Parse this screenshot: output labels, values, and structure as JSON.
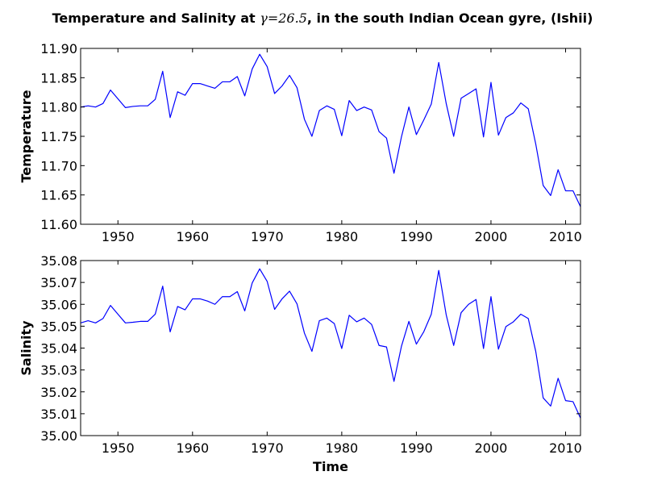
{
  "figure": {
    "title_prefix": "Temperature and Salinity at ",
    "title_gamma": "γ=26.5",
    "title_suffix": ", in the south Indian Ocean gyre, (Ishii)",
    "line_color": "#0000ff"
  },
  "chart_data": [
    {
      "type": "line",
      "ylabel": "Temperature",
      "xlabel": "",
      "xlim": [
        1945,
        2012
      ],
      "ylim": [
        11.6,
        11.9
      ],
      "xticks": [
        1950,
        1960,
        1970,
        1980,
        1990,
        2000,
        2010
      ],
      "yticks": [
        "11.60",
        "11.65",
        "11.70",
        "11.75",
        "11.80",
        "11.85",
        "11.90"
      ],
      "grid": false,
      "x": [
        1945,
        1946,
        1947,
        1948,
        1949,
        1950,
        1951,
        1952,
        1953,
        1954,
        1955,
        1956,
        1957,
        1958,
        1959,
        1960,
        1961,
        1962,
        1963,
        1964,
        1965,
        1966,
        1967,
        1968,
        1969,
        1970,
        1971,
        1972,
        1973,
        1974,
        1975,
        1976,
        1977,
        1978,
        1979,
        1980,
        1981,
        1982,
        1983,
        1984,
        1985,
        1986,
        1987,
        1988,
        1989,
        1990,
        1991,
        1992,
        1993,
        1994,
        1995,
        1996,
        1997,
        1998,
        1999,
        2000,
        2001,
        2002,
        2003,
        2004,
        2005,
        2006,
        2007,
        2008,
        2009,
        2010,
        2011,
        2012
      ],
      "values": [
        11.8,
        11.802,
        11.8,
        11.806,
        11.829,
        11.814,
        11.799,
        11.801,
        11.802,
        11.802,
        11.813,
        11.861,
        11.782,
        11.826,
        11.82,
        11.84,
        11.84,
        11.836,
        11.832,
        11.843,
        11.843,
        11.852,
        11.819,
        11.865,
        11.89,
        11.869,
        11.823,
        11.836,
        11.854,
        11.833,
        11.779,
        11.75,
        11.794,
        11.802,
        11.796,
        11.751,
        11.811,
        11.794,
        11.8,
        11.795,
        11.758,
        11.747,
        11.687,
        11.749,
        11.8,
        11.753,
        11.778,
        11.805,
        11.876,
        11.806,
        11.75,
        11.815,
        11.823,
        11.831,
        11.749,
        11.842,
        11.752,
        11.782,
        11.79,
        11.807,
        11.797,
        11.737,
        11.666,
        11.649,
        11.693,
        11.657,
        11.657,
        11.63
      ]
    },
    {
      "type": "line",
      "ylabel": "Salinity",
      "xlabel": "Time",
      "xlim": [
        1945,
        2012
      ],
      "ylim": [
        35.0,
        35.08
      ],
      "xticks": [
        1950,
        1960,
        1970,
        1980,
        1990,
        2000,
        2010
      ],
      "yticks": [
        "35.00",
        "35.01",
        "35.02",
        "35.03",
        "35.04",
        "35.05",
        "35.06",
        "35.07",
        "35.08"
      ],
      "grid": false,
      "x": [
        1945,
        1946,
        1947,
        1948,
        1949,
        1950,
        1951,
        1952,
        1953,
        1954,
        1955,
        1956,
        1957,
        1958,
        1959,
        1960,
        1961,
        1962,
        1963,
        1964,
        1965,
        1966,
        1967,
        1968,
        1969,
        1970,
        1971,
        1972,
        1973,
        1974,
        1975,
        1976,
        1977,
        1978,
        1979,
        1980,
        1981,
        1982,
        1983,
        1984,
        1985,
        1986,
        1987,
        1988,
        1989,
        1990,
        1991,
        1992,
        1993,
        1994,
        1995,
        1996,
        1997,
        1998,
        1999,
        2000,
        2001,
        2002,
        2003,
        2004,
        2005,
        2006,
        2007,
        2008,
        2009,
        2010,
        2011,
        2012
      ],
      "values": [
        35.0515,
        35.0525,
        35.0515,
        35.0535,
        35.0595,
        35.0555,
        35.0515,
        35.0518,
        35.0522,
        35.0522,
        35.0555,
        35.0683,
        35.0474,
        35.059,
        35.0575,
        35.0625,
        35.0625,
        35.0615,
        35.06,
        35.0635,
        35.0635,
        35.0658,
        35.057,
        35.0698,
        35.0762,
        35.0705,
        35.0577,
        35.0625,
        35.066,
        35.0602,
        35.0468,
        35.0385,
        35.0525,
        35.0537,
        35.0512,
        35.0398,
        35.055,
        35.052,
        35.0537,
        35.0508,
        35.0412,
        35.0405,
        35.0248,
        35.0408,
        35.0522,
        35.0418,
        35.0475,
        35.0555,
        35.0755,
        35.0552,
        35.0412,
        35.0562,
        35.06,
        35.0622,
        35.0398,
        35.0635,
        35.0395,
        35.0498,
        35.052,
        35.0555,
        35.0535,
        35.0385,
        35.0172,
        35.0135,
        35.0262,
        35.016,
        35.0155,
        35.008
      ]
    }
  ]
}
